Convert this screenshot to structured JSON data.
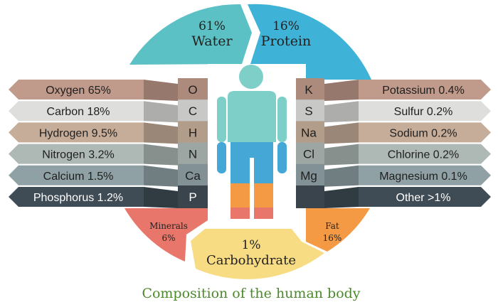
{
  "title": "Composition of the human body",
  "segments": {
    "water": {
      "percent": "61%",
      "name": "Water",
      "color": "#5cc1c4"
    },
    "protein": {
      "percent": "16%",
      "name": "Protein",
      "color": "#3fb2d8"
    },
    "minerals": {
      "name": "Minerals",
      "percent": "6%",
      "color": "#e8766a"
    },
    "fat": {
      "name": "Fat",
      "percent": "16%",
      "color": "#f59a44"
    },
    "carbohydrate": {
      "percent": "1%",
      "name": "Carbohydrate",
      "color": "#f8dc84"
    }
  },
  "left_elements": [
    {
      "symbol": "O",
      "label": "Oxygen 65%",
      "color": "#c09a8a"
    },
    {
      "symbol": "C",
      "label": "Carbon 18%",
      "color": "#dedfdd"
    },
    {
      "symbol": "H",
      "label": "Hydrogen 9.5%",
      "color": "#c6ad99"
    },
    {
      "symbol": "N",
      "label": "Nitrogen 3.2%",
      "color": "#aeb8b5"
    },
    {
      "symbol": "Ca",
      "label": "Calcium 1.5%",
      "color": "#8fa1a5"
    },
    {
      "symbol": "P",
      "label": "Phosphorus 1.2%",
      "color": "#3f4c55"
    }
  ],
  "right_elements": [
    {
      "symbol": "K",
      "label": "Potassium 0.4%",
      "color": "#c09a8a"
    },
    {
      "symbol": "S",
      "label": "Sulfur 0.2%",
      "color": "#dedfdd"
    },
    {
      "symbol": "Na",
      "label": "Sodium 0.2%",
      "color": "#c6ad99"
    },
    {
      "symbol": "Cl",
      "label": "Chlorine 0.2%",
      "color": "#aeb8b5"
    },
    {
      "symbol": "Mg",
      "label": "Magnesium 0.1%",
      "color": "#8fa1a5"
    },
    {
      "symbol": "",
      "label": "Other >1%",
      "color": "#3f4c55"
    }
  ],
  "colors": {
    "title": "#4a8a2a",
    "body_upper": "#7fcfc9",
    "body_lower": "#45a7d6",
    "body_hips": "#f59a44",
    "body_feet": "#e8766a"
  }
}
